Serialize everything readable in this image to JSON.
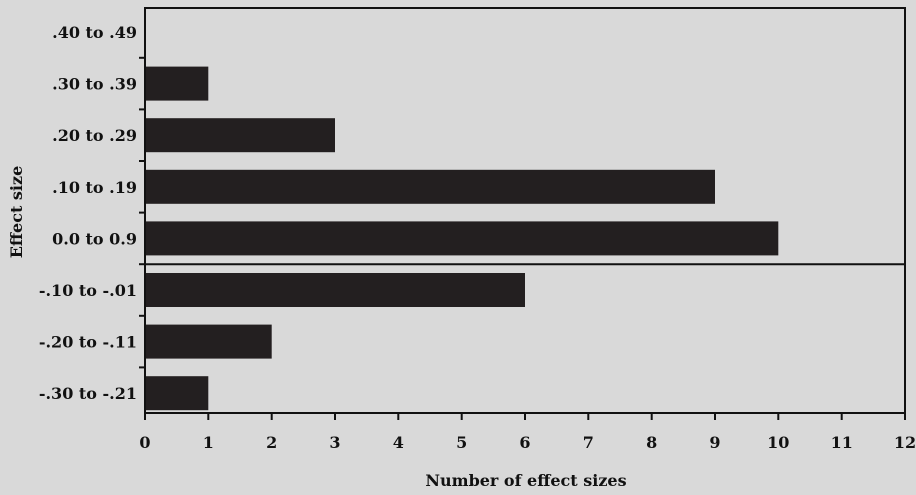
{
  "chart_data": {
    "type": "bar",
    "orientation": "horizontal",
    "categories": [
      ".40 to .49",
      ".30 to .39",
      ".20 to .29",
      ".10 to .19",
      "0.0 to 0.9",
      "-.10 to -.01",
      "-.20 to -.11",
      "-.30 to -.21"
    ],
    "values": [
      0,
      1,
      3,
      9,
      10,
      6,
      2,
      1
    ],
    "title": "",
    "xlabel": "Number of effect sizes",
    "ylabel": "Effect size",
    "xlim": [
      0,
      12
    ],
    "xticks": [
      0,
      1,
      2,
      3,
      4,
      5,
      6,
      7,
      8,
      9,
      10,
      11,
      12
    ],
    "zero_line_after_category": "0.0 to 0.9",
    "grid": false,
    "legend": "none",
    "colors": {
      "bar": "#231f20",
      "background": "#d9d9d9",
      "axis": "#111111"
    }
  }
}
